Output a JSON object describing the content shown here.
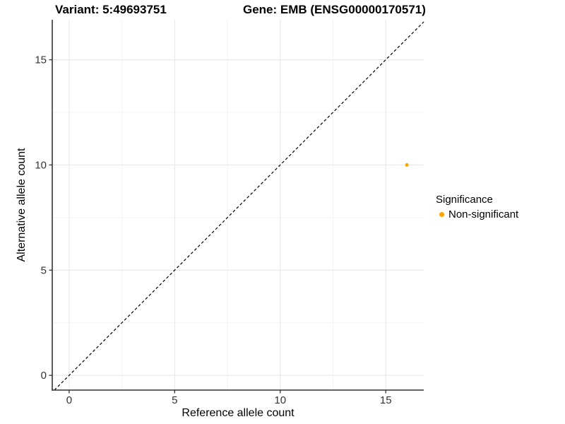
{
  "header": {
    "variant_title": "Variant: 5:49693751",
    "gene_title": "Gene: EMB (ENSG00000170571)"
  },
  "chart_data": {
    "type": "scatter",
    "xlabel": "Reference allele count",
    "ylabel": "Alternative allele count",
    "xlim": [
      -0.8,
      16.8
    ],
    "ylim": [
      -0.7,
      16.9
    ],
    "x_ticks": [
      0,
      5,
      10,
      15
    ],
    "y_ticks": [
      0,
      5,
      10,
      15
    ],
    "x_minor_ticks": [
      2.5,
      7.5,
      12.5
    ],
    "y_minor_ticks": [
      2.5,
      7.5,
      12.5
    ],
    "grid": true,
    "points": [
      {
        "x": 16,
        "y": 10,
        "series": "Non-significant"
      }
    ],
    "identity_line": {
      "style": "dashed",
      "slope": 1,
      "intercept": 0
    },
    "legend": {
      "title": "Significance",
      "position": "right",
      "items": [
        {
          "label": "Non-significant",
          "color": "#FFA500"
        }
      ]
    },
    "colors": {
      "point": "#FFA500",
      "grid_major": "#E7E7E7",
      "grid_minor": "#F3F3F3",
      "axis": "#333333",
      "tick_label": "#333333",
      "identity_line": "#000000"
    }
  }
}
